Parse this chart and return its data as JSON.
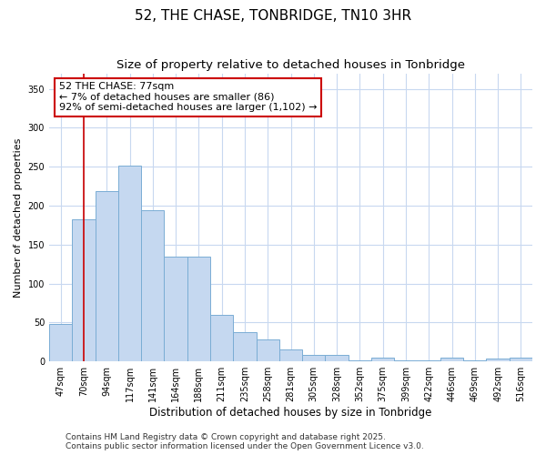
{
  "title": "52, THE CHASE, TONBRIDGE, TN10 3HR",
  "subtitle": "Size of property relative to detached houses in Tonbridge",
  "xlabel": "Distribution of detached houses by size in Tonbridge",
  "ylabel": "Number of detached properties",
  "categories": [
    "47sqm",
    "70sqm",
    "94sqm",
    "117sqm",
    "141sqm",
    "164sqm",
    "188sqm",
    "211sqm",
    "235sqm",
    "258sqm",
    "281sqm",
    "305sqm",
    "328sqm",
    "352sqm",
    "375sqm",
    "399sqm",
    "422sqm",
    "446sqm",
    "469sqm",
    "492sqm",
    "516sqm"
  ],
  "values": [
    48,
    183,
    219,
    252,
    194,
    135,
    135,
    60,
    38,
    28,
    15,
    9,
    9,
    1,
    5,
    1,
    1,
    5,
    1,
    4,
    5
  ],
  "bar_color": "#c5d8f0",
  "bar_edge_color": "#7aadd4",
  "fig_background": "#ffffff",
  "plot_background": "#ffffff",
  "grid_color": "#c8d8f0",
  "vline_x_index": 1,
  "vline_color": "#cc0000",
  "annotation_title": "52 THE CHASE: 77sqm",
  "annotation_line1": "← 7% of detached houses are smaller (86)",
  "annotation_line2": "92% of semi-detached houses are larger (1,102) →",
  "annotation_box_facecolor": "white",
  "annotation_box_edgecolor": "#cc0000",
  "ylim_max": 370,
  "yticks": [
    0,
    50,
    100,
    150,
    200,
    250,
    300,
    350
  ],
  "footer_line1": "Contains HM Land Registry data © Crown copyright and database right 2025.",
  "footer_line2": "Contains public sector information licensed under the Open Government Licence v3.0.",
  "title_fontsize": 11,
  "subtitle_fontsize": 9.5,
  "xlabel_fontsize": 8.5,
  "ylabel_fontsize": 8,
  "tick_fontsize": 7,
  "ann_fontsize": 8,
  "footer_fontsize": 6.5
}
